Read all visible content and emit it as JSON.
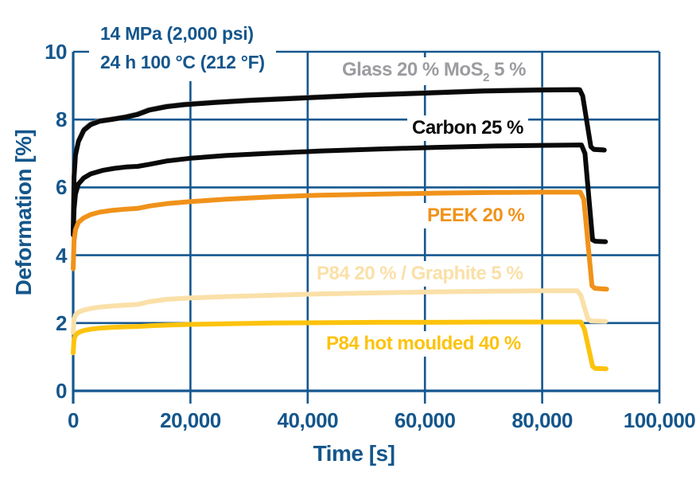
{
  "chart_data": {
    "type": "line",
    "title": "",
    "xlabel": "Time [s]",
    "ylabel": "Deformation [%]",
    "xlim": [
      0,
      100000
    ],
    "ylim": [
      0,
      10
    ],
    "grid": true,
    "legend_position": "inline-labels-on-lines",
    "axis_text_color": "#14568c",
    "grid_color": "#15578f",
    "background_color": "#ffffff",
    "annotations": [
      "14 MPa (2,000 psi)",
      "24 h 100 °C (212 °F)"
    ],
    "x_ticks": [
      {
        "value": 0,
        "label": "0"
      },
      {
        "value": 20000,
        "label": "20,000"
      },
      {
        "value": 40000,
        "label": "40,000"
      },
      {
        "value": 60000,
        "label": "60,000"
      },
      {
        "value": 80000,
        "label": "80,000"
      },
      {
        "value": 100000,
        "label": "100,000"
      }
    ],
    "y_ticks": [
      {
        "value": 0,
        "label": "0"
      },
      {
        "value": 2,
        "label": "2"
      },
      {
        "value": 4,
        "label": "4"
      },
      {
        "value": 6,
        "label": "6"
      },
      {
        "value": 8,
        "label": "8"
      },
      {
        "value": 10,
        "label": "10"
      }
    ],
    "series": [
      {
        "id": "glass",
        "name": "Glass 20 % MoS2 5 %",
        "label_parts": {
          "pre": "Glass 20 % MoS",
          "sub": "2",
          "post": " 5 %"
        },
        "color": "#0a0a0a",
        "label_color": "#9c9ca0",
        "outline_color": "#8e8e92",
        "points": [
          [
            0,
            4.65
          ],
          [
            150,
            6.3
          ],
          [
            400,
            6.95
          ],
          [
            900,
            7.35
          ],
          [
            1800,
            7.68
          ],
          [
            3000,
            7.85
          ],
          [
            4500,
            7.95
          ],
          [
            6500,
            8.0
          ],
          [
            9000,
            8.07
          ],
          [
            11000,
            8.15
          ],
          [
            13000,
            8.28
          ],
          [
            16000,
            8.38
          ],
          [
            19000,
            8.44
          ],
          [
            24000,
            8.5
          ],
          [
            30000,
            8.56
          ],
          [
            40000,
            8.64
          ],
          [
            50000,
            8.72
          ],
          [
            60000,
            8.78
          ],
          [
            70000,
            8.84
          ],
          [
            80000,
            8.87
          ],
          [
            86400,
            8.88
          ],
          [
            86900,
            8.7
          ],
          [
            88300,
            7.2
          ],
          [
            88800,
            7.12
          ],
          [
            90600,
            7.1
          ]
        ]
      },
      {
        "id": "carbon",
        "name": "Carbon 25 %",
        "label_parts": {
          "pre": "Carbon 25 %",
          "sub": "",
          "post": ""
        },
        "color": "#0a0a0a",
        "label_color": "#0a0a0a",
        "points": [
          [
            0,
            4.6
          ],
          [
            150,
            5.35
          ],
          [
            400,
            5.8
          ],
          [
            900,
            6.1
          ],
          [
            1800,
            6.28
          ],
          [
            3000,
            6.4
          ],
          [
            5000,
            6.5
          ],
          [
            7000,
            6.56
          ],
          [
            9000,
            6.6
          ],
          [
            11000,
            6.62
          ],
          [
            13000,
            6.68
          ],
          [
            16000,
            6.78
          ],
          [
            20000,
            6.86
          ],
          [
            26000,
            6.94
          ],
          [
            34000,
            7.01
          ],
          [
            42000,
            7.07
          ],
          [
            52000,
            7.13
          ],
          [
            62000,
            7.18
          ],
          [
            72000,
            7.22
          ],
          [
            80000,
            7.24
          ],
          [
            86700,
            7.25
          ],
          [
            87300,
            7.0
          ],
          [
            88600,
            4.45
          ],
          [
            89100,
            4.41
          ],
          [
            90800,
            4.4
          ]
        ]
      },
      {
        "id": "peek",
        "name": "PEEK 20 %",
        "label_parts": {
          "pre": "PEEK 20 %",
          "sub": "",
          "post": ""
        },
        "color": "#f0921a",
        "label_color": "#f0921a",
        "points": [
          [
            0,
            3.6
          ],
          [
            150,
            4.42
          ],
          [
            400,
            4.75
          ],
          [
            900,
            4.97
          ],
          [
            1800,
            5.1
          ],
          [
            3000,
            5.2
          ],
          [
            4500,
            5.27
          ],
          [
            6500,
            5.32
          ],
          [
            9000,
            5.36
          ],
          [
            11000,
            5.38
          ],
          [
            13000,
            5.45
          ],
          [
            16000,
            5.52
          ],
          [
            20000,
            5.58
          ],
          [
            26000,
            5.65
          ],
          [
            34000,
            5.72
          ],
          [
            42000,
            5.77
          ],
          [
            52000,
            5.8
          ],
          [
            62000,
            5.83
          ],
          [
            72000,
            5.85
          ],
          [
            80000,
            5.86
          ],
          [
            86500,
            5.86
          ],
          [
            87100,
            5.65
          ],
          [
            88500,
            3.1
          ],
          [
            89000,
            3.02
          ],
          [
            91000,
            3.0
          ]
        ]
      },
      {
        "id": "p84-graphite",
        "name": "P84 20 % / Graphite 5 %",
        "label_parts": {
          "pre": "P84 20 % / Graphite 5 %",
          "sub": "",
          "post": ""
        },
        "color": "#fae0a8",
        "label_color": "#fae0a8",
        "points": [
          [
            0,
            1.72
          ],
          [
            150,
            2.1
          ],
          [
            400,
            2.24
          ],
          [
            900,
            2.32
          ],
          [
            1800,
            2.38
          ],
          [
            3000,
            2.43
          ],
          [
            4500,
            2.47
          ],
          [
            6500,
            2.5
          ],
          [
            9000,
            2.53
          ],
          [
            11000,
            2.55
          ],
          [
            13000,
            2.63
          ],
          [
            16000,
            2.7
          ],
          [
            20000,
            2.74
          ],
          [
            26000,
            2.78
          ],
          [
            34000,
            2.82
          ],
          [
            42000,
            2.86
          ],
          [
            52000,
            2.89
          ],
          [
            62000,
            2.92
          ],
          [
            72000,
            2.94
          ],
          [
            80000,
            2.95
          ],
          [
            86000,
            2.95
          ],
          [
            86600,
            2.82
          ],
          [
            87800,
            2.12
          ],
          [
            88300,
            2.06
          ],
          [
            90800,
            2.05
          ]
        ]
      },
      {
        "id": "p84-hot",
        "name": "P84 hot moulded 40 %",
        "label_parts": {
          "pre": "P84 hot moulded 40 %",
          "sub": "",
          "post": ""
        },
        "color": "#fcc30d",
        "label_color": "#fcc30d",
        "points": [
          [
            0,
            1.12
          ],
          [
            150,
            1.52
          ],
          [
            400,
            1.64
          ],
          [
            900,
            1.72
          ],
          [
            1800,
            1.78
          ],
          [
            3000,
            1.82
          ],
          [
            4500,
            1.85
          ],
          [
            6500,
            1.87
          ],
          [
            9000,
            1.89
          ],
          [
            11000,
            1.9
          ],
          [
            13000,
            1.92
          ],
          [
            16000,
            1.94
          ],
          [
            20000,
            1.96
          ],
          [
            26000,
            1.98
          ],
          [
            34000,
            2.0
          ],
          [
            42000,
            2.01
          ],
          [
            52000,
            2.02
          ],
          [
            62000,
            2.02
          ],
          [
            72000,
            2.03
          ],
          [
            80000,
            2.03
          ],
          [
            86600,
            2.03
          ],
          [
            87200,
            1.82
          ],
          [
            88600,
            0.72
          ],
          [
            89100,
            0.66
          ],
          [
            90900,
            0.65
          ]
        ]
      }
    ]
  }
}
